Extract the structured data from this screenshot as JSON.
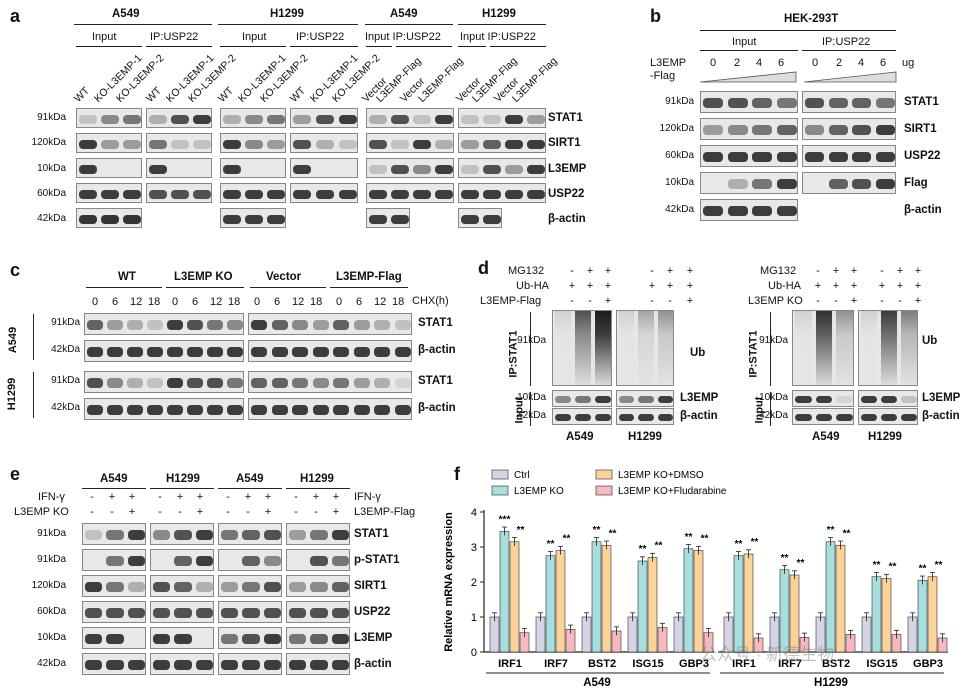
{
  "panel_a": {
    "label": "a",
    "cell_groups": [
      "A549",
      "H1299",
      "A549",
      "H1299"
    ],
    "subgroups": [
      "Input",
      "IP:USP22",
      "Input",
      "IP:USP22",
      "Input IP:USP22",
      "Input IP:USP22"
    ],
    "lanes_ko": [
      "WT",
      "KO-L3EMP-1",
      "KO-L3EMP-2"
    ],
    "lanes_flag": [
      "Vector",
      "L3EMP-Flag",
      "Vector",
      "L3EMP-Flag"
    ],
    "markers": [
      "91kDa",
      "120kDa",
      "10kDa",
      "60kDa",
      "42kDa"
    ],
    "proteins": [
      "STAT1",
      "SIRT1",
      "L3EMP",
      "USP22",
      "β-actin"
    ]
  },
  "panel_b": {
    "label": "b",
    "cell": "HEK-293T",
    "subgroups": [
      "Input",
      "IP:USP22"
    ],
    "row_label_1": "L3EMP",
    "row_label_2": "-Flag",
    "doses": [
      "0",
      "2",
      "4",
      "6",
      "0",
      "2",
      "4",
      "6"
    ],
    "unit": "ug",
    "markers": [
      "91kDa",
      "120kDa",
      "60kDa",
      "10kDa",
      "42kDa"
    ],
    "proteins": [
      "STAT1",
      "SIRT1",
      "USP22",
      "Flag",
      "β-actin"
    ]
  },
  "panel_c": {
    "label": "c",
    "groups": [
      "WT",
      "L3EMP KO",
      "Vector",
      "L3EMP-Flag"
    ],
    "times": [
      "0",
      "6",
      "12",
      "18",
      "0",
      "6",
      "12",
      "18",
      "0",
      "6",
      "12",
      "18",
      "0",
      "6",
      "12",
      "18"
    ],
    "chx": "CHX(h)",
    "cells": [
      "A549",
      "H1299"
    ],
    "markers": [
      "91kDa",
      "42kDa",
      "91kDa",
      "42kDa"
    ],
    "proteins": [
      "STAT1",
      "β-actin",
      "STAT1",
      "β-actin"
    ]
  },
  "panel_d": {
    "label": "d",
    "left_rows": [
      "MG132",
      "Ub-HA",
      "L3EMP-Flag"
    ],
    "right_rows": [
      "MG132",
      "Ub-HA",
      "L3EMP KO"
    ],
    "left_signs": [
      [
        "-",
        "+",
        "+",
        "-",
        "+",
        "+"
      ],
      [
        "+",
        "+",
        "+",
        "+",
        "+",
        "+"
      ],
      [
        "-",
        "-",
        "+",
        "-",
        "-",
        "+"
      ]
    ],
    "right_signs": [
      [
        "-",
        "+",
        "+",
        "-",
        "+",
        "+"
      ],
      [
        "+",
        "+",
        "+",
        "+",
        "+",
        "+"
      ],
      [
        "-",
        "-",
        "+",
        "-",
        "-",
        "+"
      ]
    ],
    "ip": "IP:STAT1",
    "input": "Input",
    "markers": [
      "91kDa",
      "10kDa",
      "42kDa"
    ],
    "proteins": [
      "Ub",
      "L3EMP",
      "β-actin"
    ],
    "cells": [
      "A549",
      "H1299"
    ]
  },
  "panel_e": {
    "label": "e",
    "groups": [
      "A549",
      "H1299",
      "A549",
      "H1299"
    ],
    "row1": "IFN-γ",
    "row2_left": "L3EMP KO",
    "row2_right": "L3EMP-Flag",
    "signs_ifn": [
      "-",
      "+",
      "+",
      "-",
      "+",
      "+"
    ],
    "signs_mod": [
      "-",
      "-",
      "+",
      "-",
      "-",
      "+"
    ],
    "markers": [
      "91kDa",
      "91kDa",
      "120kDa",
      "60kDa",
      "10kDa",
      "42kDa"
    ],
    "proteins": [
      "STAT1",
      "p-STAT1",
      "SIRT1",
      "USP22",
      "L3EMP",
      "β-actin"
    ]
  },
  "chart_data": {
    "label": "f",
    "type": "bar",
    "ylabel": "Relative mRNA expression",
    "ylim": [
      0,
      4
    ],
    "yticks": [
      0,
      1,
      2,
      3,
      4
    ],
    "legend": [
      "Ctrl",
      "L3EMP KO",
      "L3EMP KO+DMSO",
      "L3EMP KO+Fludarabine"
    ],
    "colors": [
      "#d4d4e6",
      "#a8dede",
      "#fbd29a",
      "#f7b9bd"
    ],
    "groups": [
      {
        "cell": "A549",
        "categories": [
          "IRF1",
          "IRF7",
          "BST2",
          "ISG15",
          "GBP3"
        ],
        "series": [
          {
            "name": "Ctrl",
            "values": [
              1.0,
              1.0,
              1.0,
              1.0,
              1.0
            ]
          },
          {
            "name": "L3EMP KO",
            "values": [
              3.45,
              2.75,
              3.15,
              2.6,
              2.95
            ]
          },
          {
            "name": "L3EMP KO+DMSO",
            "values": [
              3.15,
              2.9,
              3.05,
              2.7,
              2.9
            ]
          },
          {
            "name": "L3EMP KO+Fludarabine",
            "values": [
              0.55,
              0.65,
              0.6,
              0.7,
              0.55
            ]
          }
        ],
        "sig": [
          [
            "***",
            "**"
          ],
          [
            "**",
            "**"
          ],
          [
            "**",
            "**"
          ],
          [
            "**",
            "**"
          ],
          [
            "**",
            "**"
          ]
        ]
      },
      {
        "cell": "H1299",
        "categories": [
          "IRF1",
          "IRF7",
          "BST2",
          "ISG15",
          "GBP3"
        ],
        "series": [
          {
            "name": "Ctrl",
            "values": [
              1.0,
              1.0,
              1.0,
              1.0,
              1.0
            ]
          },
          {
            "name": "L3EMP KO",
            "values": [
              2.75,
              2.35,
              3.15,
              2.15,
              2.05
            ]
          },
          {
            "name": "L3EMP KO+DMSO",
            "values": [
              2.8,
              2.2,
              3.05,
              2.1,
              2.15
            ]
          },
          {
            "name": "L3EMP KO+Fludarabine",
            "values": [
              0.4,
              0.42,
              0.5,
              0.5,
              0.4
            ]
          }
        ],
        "sig": [
          [
            "**",
            "**"
          ],
          [
            "**",
            "**"
          ],
          [
            "**",
            "**"
          ],
          [
            "**",
            "**"
          ],
          [
            "**",
            "**"
          ]
        ]
      }
    ]
  },
  "watermark": "公众号 · 新德生物"
}
